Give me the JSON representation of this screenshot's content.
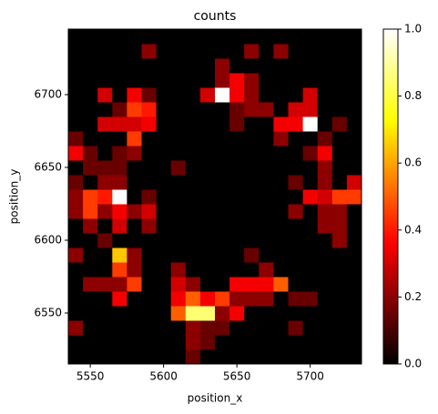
{
  "chart_data": {
    "type": "heatmap",
    "title": "counts",
    "x_label": "position_x",
    "y_label": "position_y",
    "xbins": [
      5535,
      5545,
      5555,
      5565,
      5575,
      5585,
      5595,
      5605,
      5615,
      5625,
      5635,
      5645,
      5655,
      5665,
      5675,
      5685,
      5695,
      5705,
      5715,
      5725,
      5735
    ],
    "ybins": [
      6515,
      6525,
      6535,
      6545,
      6555,
      6565,
      6575,
      6585,
      6595,
      6605,
      6615,
      6625,
      6635,
      6645,
      6655,
      6665,
      6675,
      6685,
      6695,
      6705,
      6715,
      6725,
      6735,
      6745
    ],
    "xlim": [
      5535,
      5735
    ],
    "ylim": [
      6515,
      6745
    ],
    "xticks": [
      5550,
      5600,
      5650,
      5700
    ],
    "yticks": [
      6550,
      6600,
      6650,
      6700
    ],
    "colormap": "hot",
    "clim": [
      0,
      1
    ],
    "cticks": [
      {
        "value": 0,
        "label": "0.0"
      },
      {
        "value": 0.2,
        "label": "0.2"
      },
      {
        "value": 0.4,
        "label": "0.4"
      },
      {
        "value": 0.6,
        "label": "0.6"
      },
      {
        "value": 0.8,
        "label": "0.8"
      },
      {
        "value": 1,
        "label": "1.0"
      }
    ],
    "values": [
      [
        0,
        0,
        0,
        0,
        0,
        0,
        0,
        0,
        0.15,
        0,
        0,
        0,
        0,
        0,
        0,
        0,
        0,
        0,
        0,
        0
      ],
      [
        0,
        0,
        0,
        0,
        0,
        0,
        0,
        0,
        0.2,
        0.15,
        0,
        0,
        0,
        0,
        0,
        0,
        0,
        0,
        0,
        0
      ],
      [
        0.2,
        0,
        0,
        0,
        0,
        0,
        0,
        0,
        0.2,
        0.15,
        0.15,
        0,
        0,
        0,
        0,
        0.15,
        0,
        0,
        0,
        0
      ],
      [
        0,
        0,
        0,
        0,
        0,
        0,
        0,
        0.5,
        0.85,
        0.85,
        0.2,
        0.35,
        0,
        0,
        0,
        0,
        0,
        0,
        0,
        0
      ],
      [
        0,
        0,
        0,
        0.35,
        0,
        0,
        0,
        0.35,
        0.5,
        0.35,
        0.45,
        0.2,
        0.2,
        0.2,
        0,
        0.15,
        0.15,
        0,
        0,
        0
      ],
      [
        0,
        0.2,
        0.2,
        0.2,
        0.45,
        0,
        0,
        0.3,
        0.2,
        0,
        0,
        0.35,
        0.35,
        0.35,
        0.5,
        0,
        0,
        0,
        0,
        0
      ],
      [
        0,
        0,
        0,
        0.45,
        0.2,
        0,
        0,
        0.2,
        0,
        0,
        0,
        0,
        0,
        0.2,
        0,
        0,
        0,
        0,
        0,
        0
      ],
      [
        0.2,
        0,
        0,
        0.65,
        0.2,
        0,
        0,
        0,
        0,
        0,
        0,
        0,
        0.15,
        0,
        0,
        0,
        0,
        0,
        0,
        0
      ],
      [
        0,
        0,
        0.15,
        0,
        0,
        0,
        0,
        0,
        0,
        0,
        0,
        0,
        0,
        0,
        0,
        0,
        0,
        0,
        0.2,
        0
      ],
      [
        0,
        0.2,
        0,
        0.3,
        0,
        0.2,
        0,
        0,
        0,
        0,
        0,
        0,
        0,
        0,
        0,
        0,
        0,
        0.2,
        0.2,
        0
      ],
      [
        0.2,
        0.45,
        0.2,
        0.35,
        0.2,
        0.3,
        0,
        0,
        0,
        0,
        0,
        0,
        0,
        0,
        0,
        0.2,
        0,
        0.2,
        0.2,
        0
      ],
      [
        0.2,
        0.45,
        0.4,
        1,
        0,
        0.15,
        0,
        0,
        0,
        0,
        0,
        0,
        0,
        0,
        0,
        0,
        0.35,
        0.3,
        0.45,
        0.45
      ],
      [
        0.15,
        0,
        0.2,
        0.2,
        0,
        0,
        0,
        0,
        0,
        0,
        0,
        0,
        0,
        0,
        0,
        0.15,
        0,
        0.2,
        0,
        0.3
      ],
      [
        0,
        0.15,
        0.15,
        0.15,
        0,
        0,
        0,
        0.15,
        0,
        0,
        0,
        0,
        0,
        0,
        0,
        0,
        0,
        0.2,
        0,
        0
      ],
      [
        0.35,
        0.15,
        0,
        0.15,
        0.2,
        0,
        0,
        0,
        0,
        0,
        0,
        0,
        0,
        0,
        0,
        0,
        0.15,
        0.35,
        0,
        0
      ],
      [
        0.15,
        0,
        0,
        0,
        0.45,
        0,
        0,
        0,
        0,
        0,
        0,
        0,
        0,
        0,
        0.2,
        0,
        0,
        0.15,
        0,
        0
      ],
      [
        0,
        0,
        0.3,
        0.3,
        0.3,
        0.35,
        0,
        0,
        0,
        0,
        0,
        0.15,
        0,
        0,
        0.35,
        0.35,
        1,
        0,
        0.15,
        0
      ],
      [
        0,
        0,
        0,
        0.15,
        0.45,
        0.4,
        0,
        0,
        0,
        0,
        0,
        0.15,
        0.2,
        0.2,
        0,
        0.3,
        0.3,
        0,
        0,
        0
      ],
      [
        0,
        0,
        0.3,
        0,
        0.35,
        0.15,
        0,
        0,
        0,
        0.3,
        1,
        0.35,
        0.2,
        0,
        0,
        0,
        0.3,
        0,
        0,
        0
      ],
      [
        0,
        0,
        0,
        0,
        0,
        0,
        0,
        0,
        0,
        0,
        0.2,
        0.35,
        0.2,
        0,
        0,
        0,
        0,
        0,
        0,
        0
      ],
      [
        0,
        0,
        0,
        0,
        0,
        0,
        0,
        0,
        0,
        0,
        0.2,
        0,
        0,
        0,
        0,
        0,
        0,
        0,
        0,
        0
      ],
      [
        0,
        0,
        0,
        0,
        0,
        0.2,
        0,
        0,
        0,
        0,
        0,
        0,
        0.2,
        0,
        0.2,
        0,
        0,
        0,
        0,
        0
      ],
      [
        0,
        0,
        0,
        0,
        0,
        0,
        0,
        0,
        0,
        0,
        0,
        0,
        0,
        0,
        0,
        0,
        0,
        0,
        0,
        0
      ]
    ]
  }
}
